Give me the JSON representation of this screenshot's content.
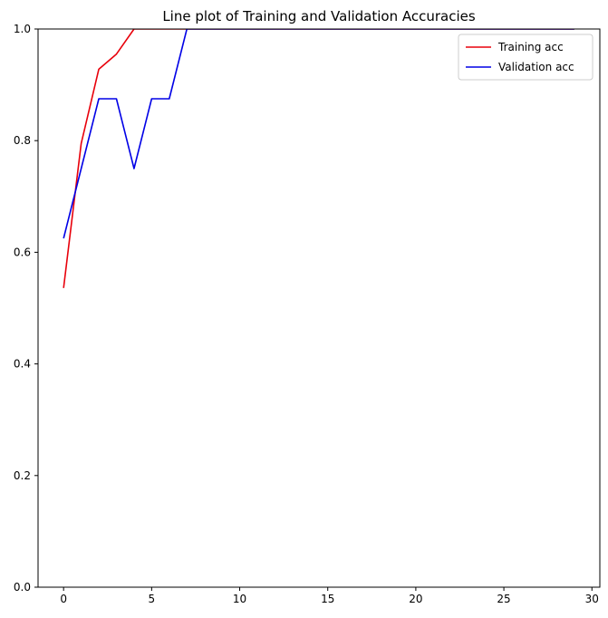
{
  "chart_data": {
    "type": "line",
    "title": "Line plot of Training and Validation Accuracies",
    "xlabel": "",
    "ylabel": "",
    "xlim": [
      -1.45,
      30.45
    ],
    "ylim": [
      0,
      1
    ],
    "xticks": [
      0,
      5,
      10,
      15,
      20,
      25,
      30
    ],
    "xtick_labels": [
      "0",
      "5",
      "10",
      "15",
      "20",
      "25",
      "30"
    ],
    "yticks": [
      0,
      0.2,
      0.4,
      0.6,
      0.8,
      1.0
    ],
    "ytick_labels": [
      "0.0",
      "0.2",
      "0.4",
      "0.6",
      "0.8",
      "1.0"
    ],
    "grid": false,
    "legend_position": "top-right",
    "x": [
      0,
      1,
      2,
      3,
      4,
      5,
      6,
      7,
      8,
      9,
      10,
      11,
      12,
      13,
      14,
      15,
      16,
      17,
      18,
      19,
      20,
      21,
      22,
      23,
      24,
      25,
      26,
      27,
      28,
      29
    ],
    "series": [
      {
        "name": "Training acc",
        "color": "#e8000b",
        "values": [
          0.536,
          0.795,
          0.928,
          0.955,
          1.0,
          1.0,
          1.0,
          1.0,
          1.0,
          1.0,
          1.0,
          1.0,
          1.0,
          1.0,
          1.0,
          1.0,
          1.0,
          1.0,
          1.0,
          1.0,
          1.0,
          1.0,
          1.0,
          1.0,
          1.0,
          1.0,
          1.0,
          1.0,
          1.0,
          1.0
        ]
      },
      {
        "name": "Validation acc",
        "color": "#0000e6",
        "values": [
          0.625,
          0.75,
          0.875,
          0.875,
          0.75,
          0.875,
          0.875,
          1.0,
          1.0,
          1.0,
          1.0,
          1.0,
          1.0,
          1.0,
          1.0,
          1.0,
          1.0,
          1.0,
          1.0,
          1.0,
          1.0,
          1.0,
          1.0,
          1.0,
          1.0,
          1.0,
          1.0,
          1.0,
          1.0,
          1.0
        ]
      }
    ]
  }
}
